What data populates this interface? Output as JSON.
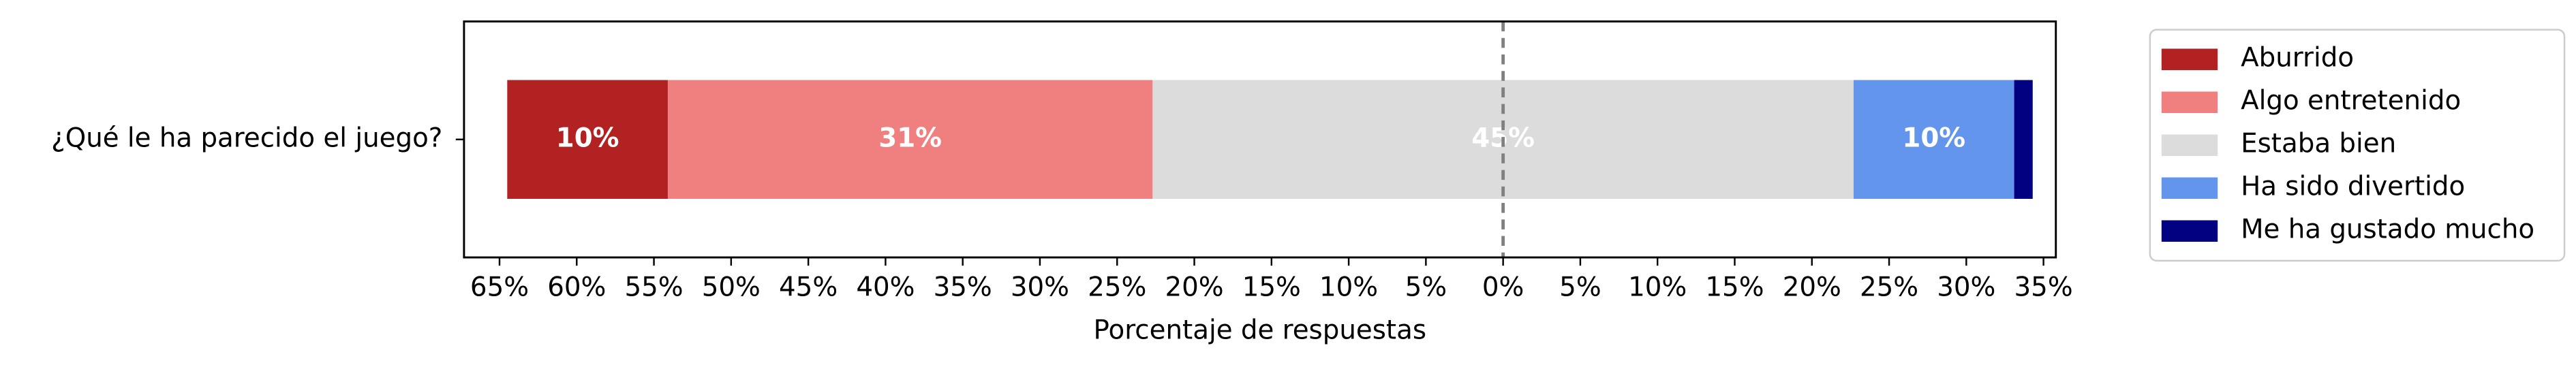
{
  "chart_data": {
    "type": "bar",
    "orientation": "horizontal",
    "diverging": true,
    "categories": [
      "¿Qué le ha parecido el juego?"
    ],
    "series": [
      {
        "name": "Aburrido",
        "color": "#b22222",
        "values": [
          10.4
        ],
        "value_labels": [
          "10%"
        ]
      },
      {
        "name": "Algo entretenido",
        "color": "#f08080",
        "values": [
          31.4
        ],
        "value_labels": [
          "31%"
        ]
      },
      {
        "name": "Estaba bien",
        "color": "#dcdcdc",
        "values": [
          45.4
        ],
        "value_labels": [
          "45%"
        ]
      },
      {
        "name": "Ha sido divertido",
        "color": "#6495ed",
        "values": [
          10.4
        ],
        "value_labels": [
          "10%"
        ]
      },
      {
        "name": "Me ha gustado mucho",
        "color": "#000080",
        "values": [
          1.2
        ],
        "value_labels": [
          null
        ]
      }
    ],
    "xlabel": "Porcentaje de respuestas",
    "xlim": [
      -67.3,
      35.8
    ],
    "xticks": [
      {
        "value": -65,
        "label": "65%"
      },
      {
        "value": -60,
        "label": "60%"
      },
      {
        "value": -55,
        "label": "55%"
      },
      {
        "value": -50,
        "label": "50%"
      },
      {
        "value": -45,
        "label": "45%"
      },
      {
        "value": -40,
        "label": "40%"
      },
      {
        "value": -35,
        "label": "35%"
      },
      {
        "value": -30,
        "label": "30%"
      },
      {
        "value": -25,
        "label": "25%"
      },
      {
        "value": -20,
        "label": "20%"
      },
      {
        "value": -15,
        "label": "15%"
      },
      {
        "value": -10,
        "label": "10%"
      },
      {
        "value": -5,
        "label": "5%"
      },
      {
        "value": 0,
        "label": "0%"
      },
      {
        "value": 5,
        "label": "5%"
      },
      {
        "value": 10,
        "label": "10%"
      },
      {
        "value": 15,
        "label": "15%"
      },
      {
        "value": 20,
        "label": "20%"
      },
      {
        "value": 25,
        "label": "25%"
      },
      {
        "value": 30,
        "label": "30%"
      },
      {
        "value": 35,
        "label": "35%"
      }
    ],
    "legend": "right"
  }
}
